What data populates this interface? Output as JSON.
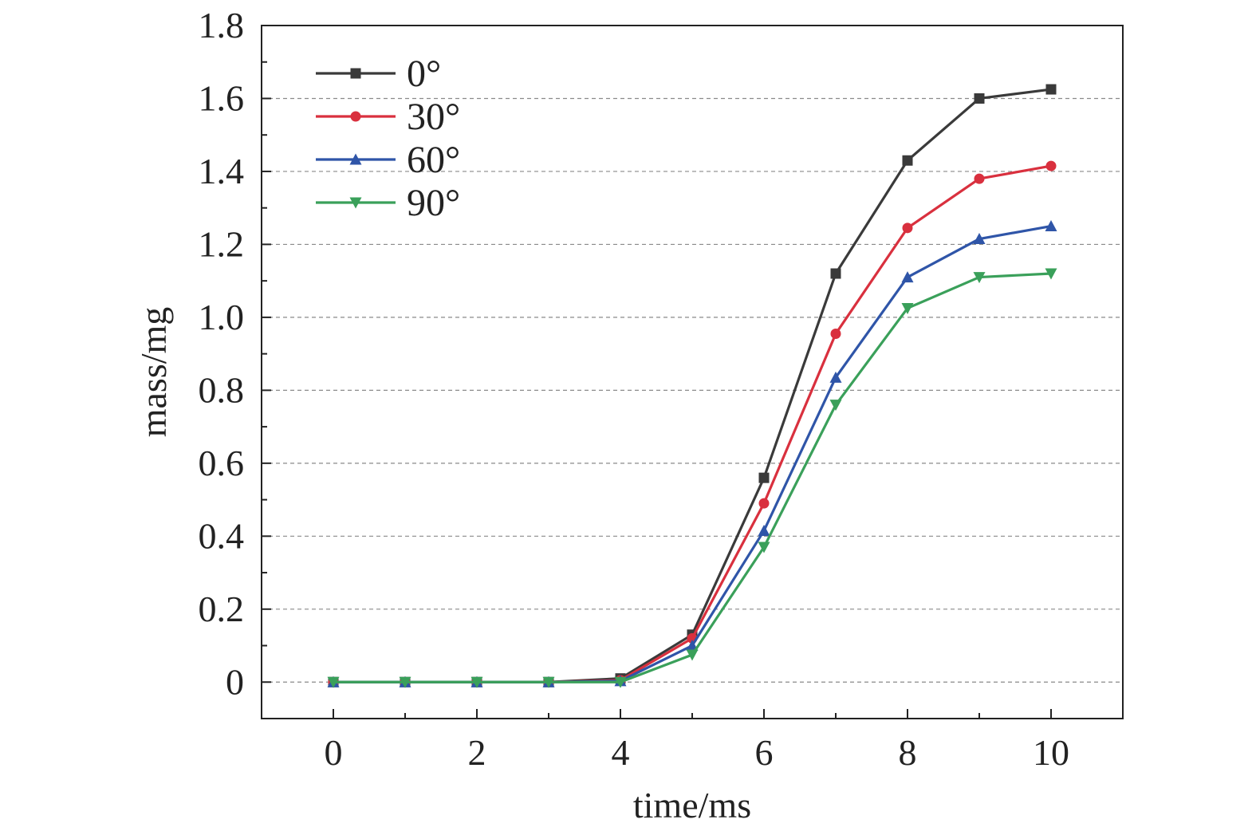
{
  "chart_data": {
    "type": "line",
    "xlabel": "time/ms",
    "ylabel": "mass/mg",
    "xlim": [
      -1,
      11
    ],
    "ylim": [
      -0.1,
      1.8
    ],
    "x_ticks": [
      0,
      2,
      4,
      6,
      8,
      10
    ],
    "y_ticks": [
      0,
      0.2,
      0.4,
      0.6,
      0.8,
      1.0,
      1.2,
      1.4,
      1.6,
      1.8
    ],
    "y_tick_labels": [
      "0",
      "0.2",
      "0.4",
      "0.6",
      "0.8",
      "1.0",
      "1.2",
      "1.4",
      "1.6",
      "1.8"
    ],
    "x_tick_labels": [
      "0",
      "2",
      "4",
      "6",
      "8",
      "10"
    ],
    "grid": "horizontal dashed",
    "legend_position": "top-left",
    "x": [
      0,
      1,
      2,
      3,
      4,
      5,
      6,
      7,
      8,
      9,
      10
    ],
    "series": [
      {
        "name": "0°",
        "color": "#3a3a3a",
        "marker": "square",
        "values": [
          0,
          0,
          0,
          0,
          0.01,
          0.13,
          0.56,
          1.12,
          1.43,
          1.6,
          1.625
        ]
      },
      {
        "name": "30°",
        "color": "#d9303e",
        "marker": "circle",
        "values": [
          0,
          0,
          0,
          0,
          0.005,
          0.12,
          0.49,
          0.955,
          1.245,
          1.38,
          1.415
        ]
      },
      {
        "name": "60°",
        "color": "#2f55a8",
        "marker": "triangle-up",
        "values": [
          0,
          0,
          0,
          0,
          0.003,
          0.1,
          0.415,
          0.835,
          1.11,
          1.215,
          1.25
        ]
      },
      {
        "name": "90°",
        "color": "#3aa05a",
        "marker": "triangle-down",
        "values": [
          0,
          0,
          0,
          0,
          0.0,
          0.075,
          0.37,
          0.76,
          1.025,
          1.11,
          1.12
        ]
      }
    ]
  }
}
